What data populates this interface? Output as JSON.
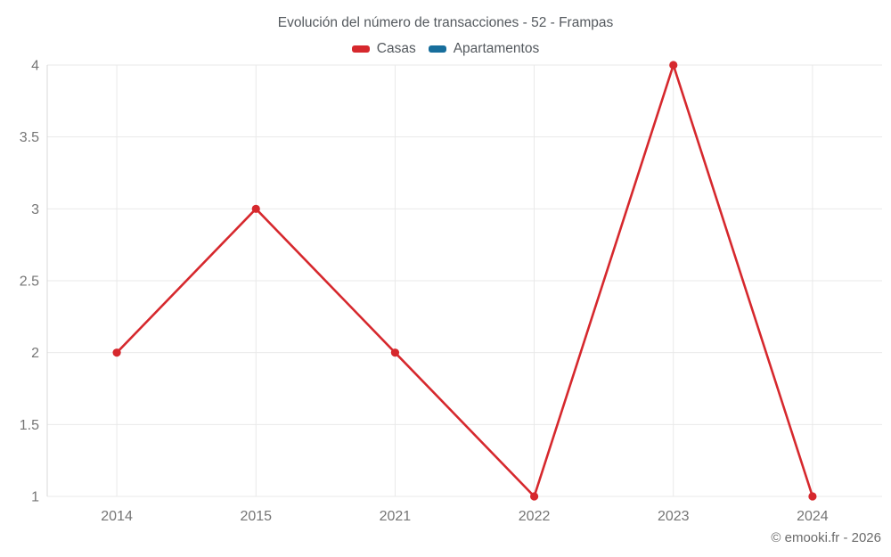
{
  "title": "Evolución del número de transacciones - 52 - Frampas",
  "footer": "© emooki.fr - 2026",
  "colors": {
    "casas": "#d6282d",
    "apartamentos": "#176e9c",
    "gridline": "#e9e9e9",
    "axis_line": "#d9d9d9",
    "tick_text": "#757575",
    "title_text": "#54595e"
  },
  "chart_data": {
    "type": "line",
    "title": "Evolución del número de transacciones - 52 - Frampas",
    "categories": [
      "2014",
      "2015",
      "2021",
      "2022",
      "2023",
      "2024"
    ],
    "series": [
      {
        "name": "Casas",
        "color": "#d6282d",
        "values": [
          2,
          3,
          2,
          1,
          4,
          1
        ]
      },
      {
        "name": "Apartamentos",
        "color": "#176e9c",
        "values": []
      }
    ],
    "xlabel": "",
    "ylabel": "",
    "ylim": [
      1,
      4
    ],
    "yticks": [
      1,
      1.5,
      2,
      2.5,
      3,
      3.5,
      4
    ],
    "grid": true,
    "legend_position": "top",
    "point_radius": 4.6,
    "line_width": 2.6
  }
}
